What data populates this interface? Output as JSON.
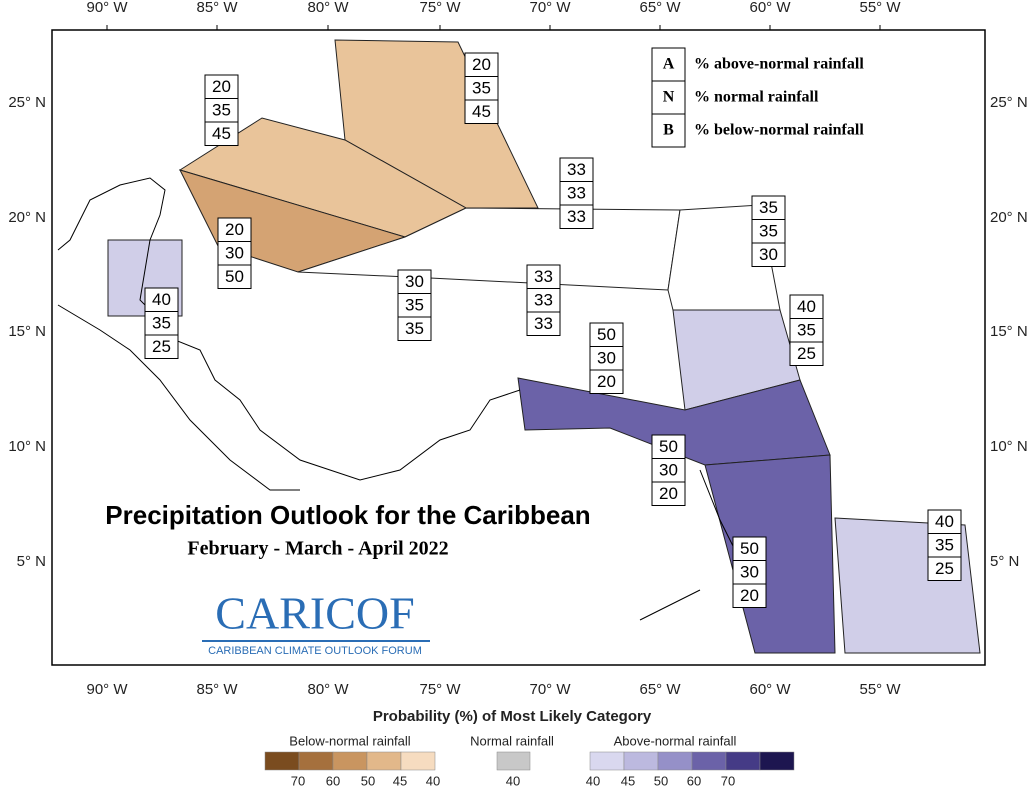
{
  "map": {
    "title": "Precipitation Outlook for the Caribbean",
    "subtitle": "February - March - April  2022",
    "longitude_labels": [
      "90° W",
      "85° W",
      "80° W",
      "75° W",
      "70° W",
      "65° W",
      "60° W",
      "55° W"
    ],
    "latitude_labels": [
      "25° N",
      "20° N",
      "15° N",
      "10° N",
      "5° N"
    ],
    "key": [
      {
        "letter": "A",
        "text": "% above-normal rainfall"
      },
      {
        "letter": "N",
        "text": "% normal rainfall"
      },
      {
        "letter": "B",
        "text": "% below-normal rainfall"
      }
    ],
    "regions": [
      {
        "values": [
          20,
          35,
          45
        ]
      },
      {
        "values": [
          20,
          35,
          45
        ]
      },
      {
        "values": [
          20,
          30,
          50
        ]
      },
      {
        "values": [
          33,
          33,
          33
        ]
      },
      {
        "values": [
          30,
          35,
          35
        ]
      },
      {
        "values": [
          33,
          33,
          33
        ]
      },
      {
        "values": [
          40,
          35,
          25
        ]
      },
      {
        "values": [
          35,
          35,
          30
        ]
      },
      {
        "values": [
          40,
          35,
          25
        ]
      },
      {
        "values": [
          50,
          30,
          20
        ]
      },
      {
        "values": [
          50,
          30,
          20
        ]
      },
      {
        "values": [
          50,
          30,
          20
        ]
      },
      {
        "values": [
          40,
          35,
          25
        ]
      }
    ],
    "logo": {
      "name": "CARICOF",
      "tagline": "CARIBBEAN CLIMATE OUTLOOK FORUM"
    },
    "colorbar": {
      "title": "Probability (%) of Most Likely Category",
      "groups": [
        {
          "name": "Below-normal rainfall",
          "ticks": [
            70,
            60,
            50,
            45,
            40
          ]
        },
        {
          "name": "Normal rainfall",
          "ticks": [
            40
          ]
        },
        {
          "name": "Above-normal rainfall",
          "ticks": [
            40,
            45,
            50,
            60,
            70
          ]
        }
      ]
    }
  }
}
